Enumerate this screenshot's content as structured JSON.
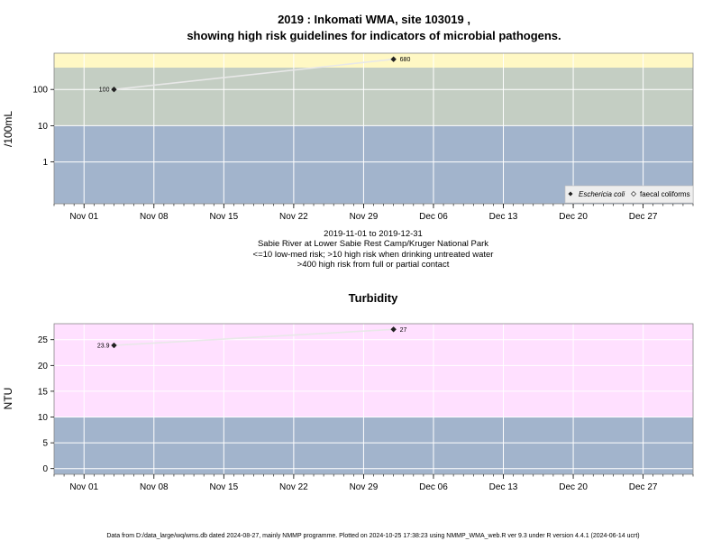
{
  "colors": {
    "plot_border": "#888888",
    "band_low": "#a2b4cc",
    "band_mid": "#c4cec3",
    "band_high": "#fff8c4",
    "band_turb_high": "#ffe0ff",
    "grid": "#ffffff",
    "line": "#e8e8e8",
    "point": "#222222"
  },
  "header": {
    "title_line1": "2019 : Inkomati WMA, site 103019 ,",
    "title_line2": "showing high risk guidelines for indicators of microbial pathogens."
  },
  "chart_data": [
    {
      "type": "scatter",
      "ylabel": "/100mL",
      "yscale": "log",
      "ytick_labels": [
        "1",
        "10",
        "100"
      ],
      "ytick_values": [
        1,
        10,
        100
      ],
      "ylim": [
        0.07,
        1000
      ],
      "xlim": [
        "2019-10-29",
        "2020-01-01"
      ],
      "xtick_labels": [
        "Nov 01",
        "Nov 08",
        "Nov 15",
        "Nov 22",
        "Nov 29",
        "Dec 06",
        "Dec 13",
        "Dec 20",
        "Dec 27"
      ],
      "xtick_dates": [
        "2019-11-01",
        "2019-11-08",
        "2019-11-15",
        "2019-11-22",
        "2019-11-29",
        "2019-12-06",
        "2019-12-13",
        "2019-12-20",
        "2019-12-27"
      ],
      "bands": [
        {
          "from": 0.07,
          "to": 10,
          "color": "#a2b4cc"
        },
        {
          "from": 10,
          "to": 400,
          "color": "#c4cec3"
        },
        {
          "from": 400,
          "to": 1000,
          "color": "#fff8c4"
        }
      ],
      "series": [
        {
          "name": "Eschericia coli",
          "points": [
            {
              "x": "2019-11-04",
              "y": 100,
              "label": "100"
            },
            {
              "x": "2019-12-02",
              "y": 680,
              "label": "680"
            }
          ]
        }
      ],
      "legend": [
        "Eschericia coli",
        "faecal coliforms"
      ],
      "legend_position": "bottom-right",
      "grid": true
    },
    {
      "type": "scatter",
      "title": "Turbidity",
      "ylabel": "NTU",
      "ytick_labels": [
        "0",
        "5",
        "10",
        "15",
        "20",
        "25"
      ],
      "ytick_values": [
        0,
        5,
        10,
        15,
        20,
        25
      ],
      "ylim": [
        -1.1,
        28.1
      ],
      "xlim": [
        "2019-10-29",
        "2020-01-01"
      ],
      "xtick_labels": [
        "Nov 01",
        "Nov 08",
        "Nov 15",
        "Nov 22",
        "Nov 29",
        "Dec 06",
        "Dec 13",
        "Dec 20",
        "Dec 27"
      ],
      "xtick_dates": [
        "2019-11-01",
        "2019-11-08",
        "2019-11-15",
        "2019-11-22",
        "2019-11-29",
        "2019-12-06",
        "2019-12-13",
        "2019-12-20",
        "2019-12-27"
      ],
      "bands": [
        {
          "from": -1.1,
          "to": 10,
          "color": "#a2b4cc"
        },
        {
          "from": 10,
          "to": 28.1,
          "color": "#ffe0ff"
        }
      ],
      "series": [
        {
          "points": [
            {
              "x": "2019-11-04",
              "y": 23.9,
              "label": "23.9"
            },
            {
              "x": "2019-12-02",
              "y": 27,
              "label": "27"
            }
          ]
        }
      ],
      "grid": true
    }
  ],
  "caption": {
    "line1": "2019-11-01 to 2019-12-31",
    "line2": "Sabie River at Lower Sabie Rest Camp/Kruger National Park",
    "line3": "<=10 low-med risk; >10 high risk when drinking untreated water",
    "line4": ">400 high risk from full or partial contact"
  },
  "footer": {
    "text": "Data from D:/data_large/wq/wms.db dated 2024-08-27, mainly NMMP programme. Plotted on 2024-10-25 17:38:23 using NMMP_WMA_web.R ver 9.3 under R version 4.4.1 (2024-06-14 ucrt)"
  }
}
